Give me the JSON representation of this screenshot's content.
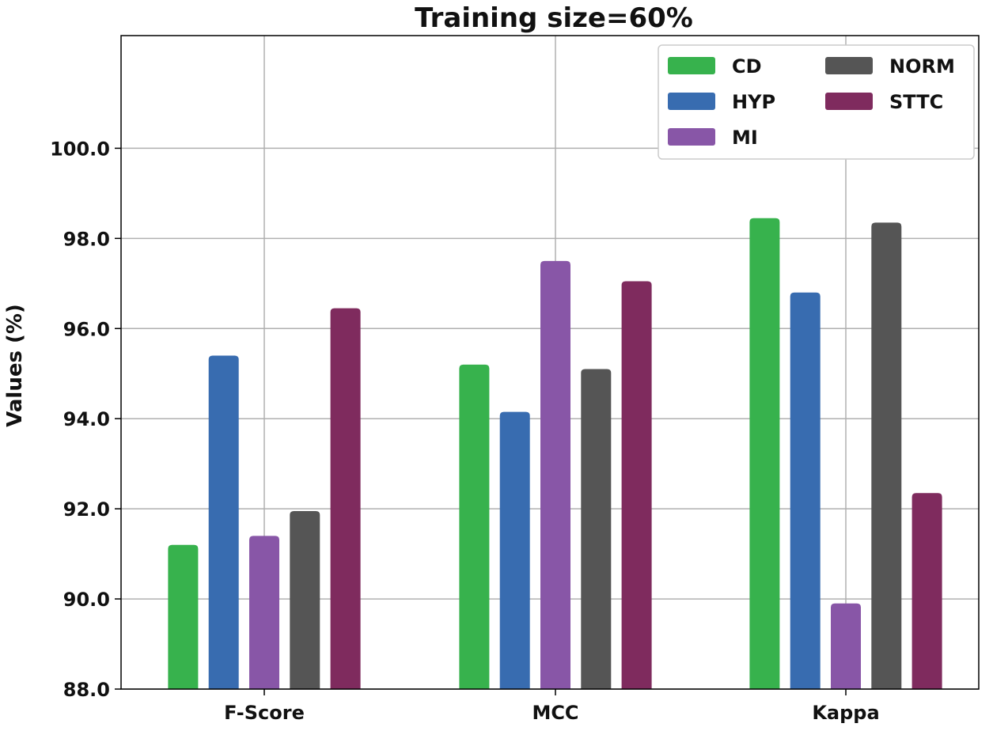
{
  "chart_data": {
    "type": "bar",
    "title": "Training size=60%",
    "xlabel": "",
    "ylabel": "Values (%)",
    "ylim": [
      88.0,
      102.5
    ],
    "yticks": [
      "88.0",
      "90.0",
      "92.0",
      "94.0",
      "96.0",
      "98.0",
      "100.0"
    ],
    "categories": [
      "F-Score",
      "MCC",
      "Kappa"
    ],
    "grid": true,
    "legend_position": "top-right",
    "series": [
      {
        "name": "CD",
        "color": "#37b24d",
        "values": [
          91.2,
          95.2,
          98.45
        ]
      },
      {
        "name": "HYP",
        "color": "#386cb0",
        "values": [
          95.4,
          94.15,
          96.8
        ]
      },
      {
        "name": "MI",
        "color": "#8856a7",
        "values": [
          91.4,
          97.5,
          89.9
        ]
      },
      {
        "name": "NORM",
        "color": "#555555",
        "values": [
          91.95,
          95.1,
          98.35
        ]
      },
      {
        "name": "STTC",
        "color": "#7f2b5e",
        "values": [
          96.45,
          97.05,
          92.35
        ]
      }
    ]
  }
}
